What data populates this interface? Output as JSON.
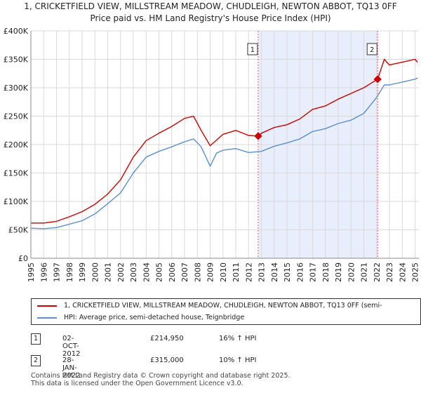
{
  "title_line1": "1, CRICKETFIELD VIEW, MILLSTREAM MEADOW, CHUDLEIGH, NEWTON ABBOT, TQ13 0FF",
  "title_line2": "Price paid vs. HM Land Registry's House Price Index (HPI)",
  "colors": {
    "property": "#cc0000",
    "hpi": "#5b8fd0",
    "shade": "#e8eefb",
    "vline": "#e06060"
  },
  "chart_data": {
    "type": "line",
    "ylim": [
      0,
      400000
    ],
    "xlim": [
      1995,
      2025.3
    ],
    "ytick_values": [
      0,
      50000,
      100000,
      150000,
      200000,
      250000,
      300000,
      350000,
      400000
    ],
    "ytick_labels": [
      "£0",
      "£50K",
      "£100K",
      "£150K",
      "£200K",
      "£250K",
      "£300K",
      "£350K",
      "£400K"
    ],
    "xtick_labels": [
      "1995",
      "1996",
      "1997",
      "1998",
      "1999",
      "2000",
      "2001",
      "2002",
      "2003",
      "2004",
      "2005",
      "2006",
      "2007",
      "2008",
      "2009",
      "2010",
      "2011",
      "2012",
      "2013",
      "2014",
      "2015",
      "2016",
      "2017",
      "2018",
      "2019",
      "2020",
      "2021",
      "2022",
      "2023",
      "2024",
      "2025"
    ],
    "shaded_range": [
      2012.75,
      2022.08
    ],
    "series": [
      {
        "name": "property",
        "x": [
          1995,
          1996,
          1997,
          1998,
          1999,
          2000,
          2001,
          2002,
          2003,
          2004,
          2005,
          2006,
          2007,
          2007.7,
          2008.3,
          2009,
          2009.6,
          2010,
          2011,
          2012,
          2012.75,
          2013,
          2014,
          2015,
          2016,
          2017,
          2018,
          2019,
          2020,
          2021,
          2022.08,
          2022.6,
          2023,
          2024,
          2025,
          2025.2
        ],
        "y": [
          62000,
          62000,
          65000,
          73000,
          82000,
          95000,
          113000,
          138000,
          178000,
          207000,
          220000,
          232000,
          246000,
          250000,
          225000,
          198000,
          210000,
          218000,
          225000,
          216000,
          214950,
          220000,
          230000,
          235000,
          245000,
          262000,
          268000,
          280000,
          290000,
          300000,
          315000,
          350000,
          340000,
          345000,
          350000,
          345000
        ]
      },
      {
        "name": "hpi",
        "x": [
          1995,
          1996,
          1997,
          1998,
          1999,
          2000,
          2001,
          2002,
          2003,
          2004,
          2005,
          2006,
          2007,
          2007.7,
          2008.3,
          2009,
          2009.5,
          2010,
          2011,
          2012,
          2013,
          2014,
          2015,
          2016,
          2017,
          2018,
          2019,
          2020,
          2021,
          2022,
          2022.6,
          2023,
          2024,
          2025,
          2025.2
        ],
        "y": [
          53000,
          52000,
          54000,
          60000,
          66000,
          78000,
          96000,
          115000,
          150000,
          178000,
          188000,
          196000,
          205000,
          210000,
          196000,
          162000,
          185000,
          190000,
          193000,
          186000,
          188000,
          197000,
          203000,
          210000,
          223000,
          228000,
          237000,
          243000,
          255000,
          283000,
          305000,
          305000,
          310000,
          315000,
          317000
        ]
      }
    ],
    "transactions": [
      {
        "id": "1",
        "x": 2012.75,
        "y": 214950
      },
      {
        "id": "2",
        "x": 2022.08,
        "y": 315000
      }
    ]
  },
  "legend": {
    "property_label": "1, CRICKETFIELD VIEW, MILLSTREAM MEADOW, CHUDLEIGH, NEWTON ABBOT, TQ13 0FF (semi-",
    "hpi_label": "HPI: Average price, semi-detached house, Teignbridge"
  },
  "table": [
    {
      "id": "1",
      "date": "02-OCT-2012",
      "price": "£214,950",
      "hpi": "16% ↑ HPI"
    },
    {
      "id": "2",
      "date": "28-JAN-2022",
      "price": "£315,000",
      "hpi": "10% ↑ HPI"
    }
  ],
  "footer_line1": "Contains HM Land Registry data © Crown copyright and database right 2025.",
  "footer_line2": "This data is licensed under the Open Government Licence v3.0."
}
